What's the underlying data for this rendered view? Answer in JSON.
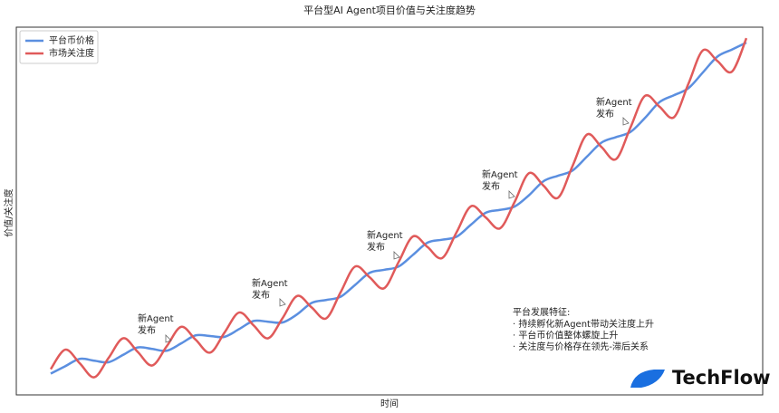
{
  "chart_data": {
    "type": "line",
    "title": "平台型AI Agent项目价值与关注度趋势",
    "x_label": "时间",
    "y_label": "价值/关注度",
    "ylim": [
      0,
      100
    ],
    "legend": "upper left",
    "series": [
      {
        "name": "平台币价格",
        "color": "#5b8fe0",
        "values": [
          5.8,
          7.8,
          9.8,
          9.3,
          8.9,
          10.9,
          12.9,
          12.5,
          12.0,
          14.0,
          16.2,
          16.0,
          15.8,
          17.9,
          20.1,
          19.9,
          19.7,
          21.9,
          25.0,
          25.8,
          26.7,
          29.9,
          33.2,
          34.0,
          34.9,
          38.1,
          41.4,
          42.2,
          43.0,
          46.3,
          49.5,
          50.3,
          51.2,
          54.3,
          58.1,
          59.6,
          61.0,
          64.8,
          68.6,
          70.1,
          71.5,
          75.3,
          79.6,
          81.5,
          83.4,
          87.7,
          92.0,
          93.9,
          95.8
        ]
      },
      {
        "name": "市场关注度",
        "color": "#e05a5a",
        "values": [
          7.0,
          12.3,
          8.6,
          4.8,
          10.1,
          15.4,
          11.7,
          8.0,
          13.2,
          18.5,
          15.0,
          11.5,
          17.0,
          22.4,
          18.9,
          15.4,
          20.9,
          26.9,
          23.8,
          20.8,
          27.9,
          34.9,
          32.0,
          29.0,
          36.1,
          43.1,
          40.2,
          37.2,
          44.2,
          51.3,
          48.3,
          45.3,
          52.4,
          60.3,
          56.9,
          53.6,
          62.2,
          70.8,
          67.4,
          64.1,
          72.7,
          81.3,
          78.4,
          75.5,
          84.6,
          93.7,
          90.8,
          87.9,
          97.0
        ]
      }
    ],
    "annotations": [
      {
        "lines": [
          "新Agent",
          "发布"
        ]
      },
      {
        "lines": [
          "新Agent",
          "发布"
        ]
      },
      {
        "lines": [
          "新Agent",
          "发布"
        ]
      },
      {
        "lines": [
          "新Agent",
          "发布"
        ]
      },
      {
        "lines": [
          "新Agent",
          "发布"
        ]
      }
    ],
    "note": {
      "title": "平台发展特征:",
      "items": [
        "·  持续孵化新Agent带动关注度上升",
        "·  平台币价值整体螺旋上升",
        "·  关注度与价格存在领先-滞后关系"
      ]
    },
    "watermark": "TechFlow"
  }
}
